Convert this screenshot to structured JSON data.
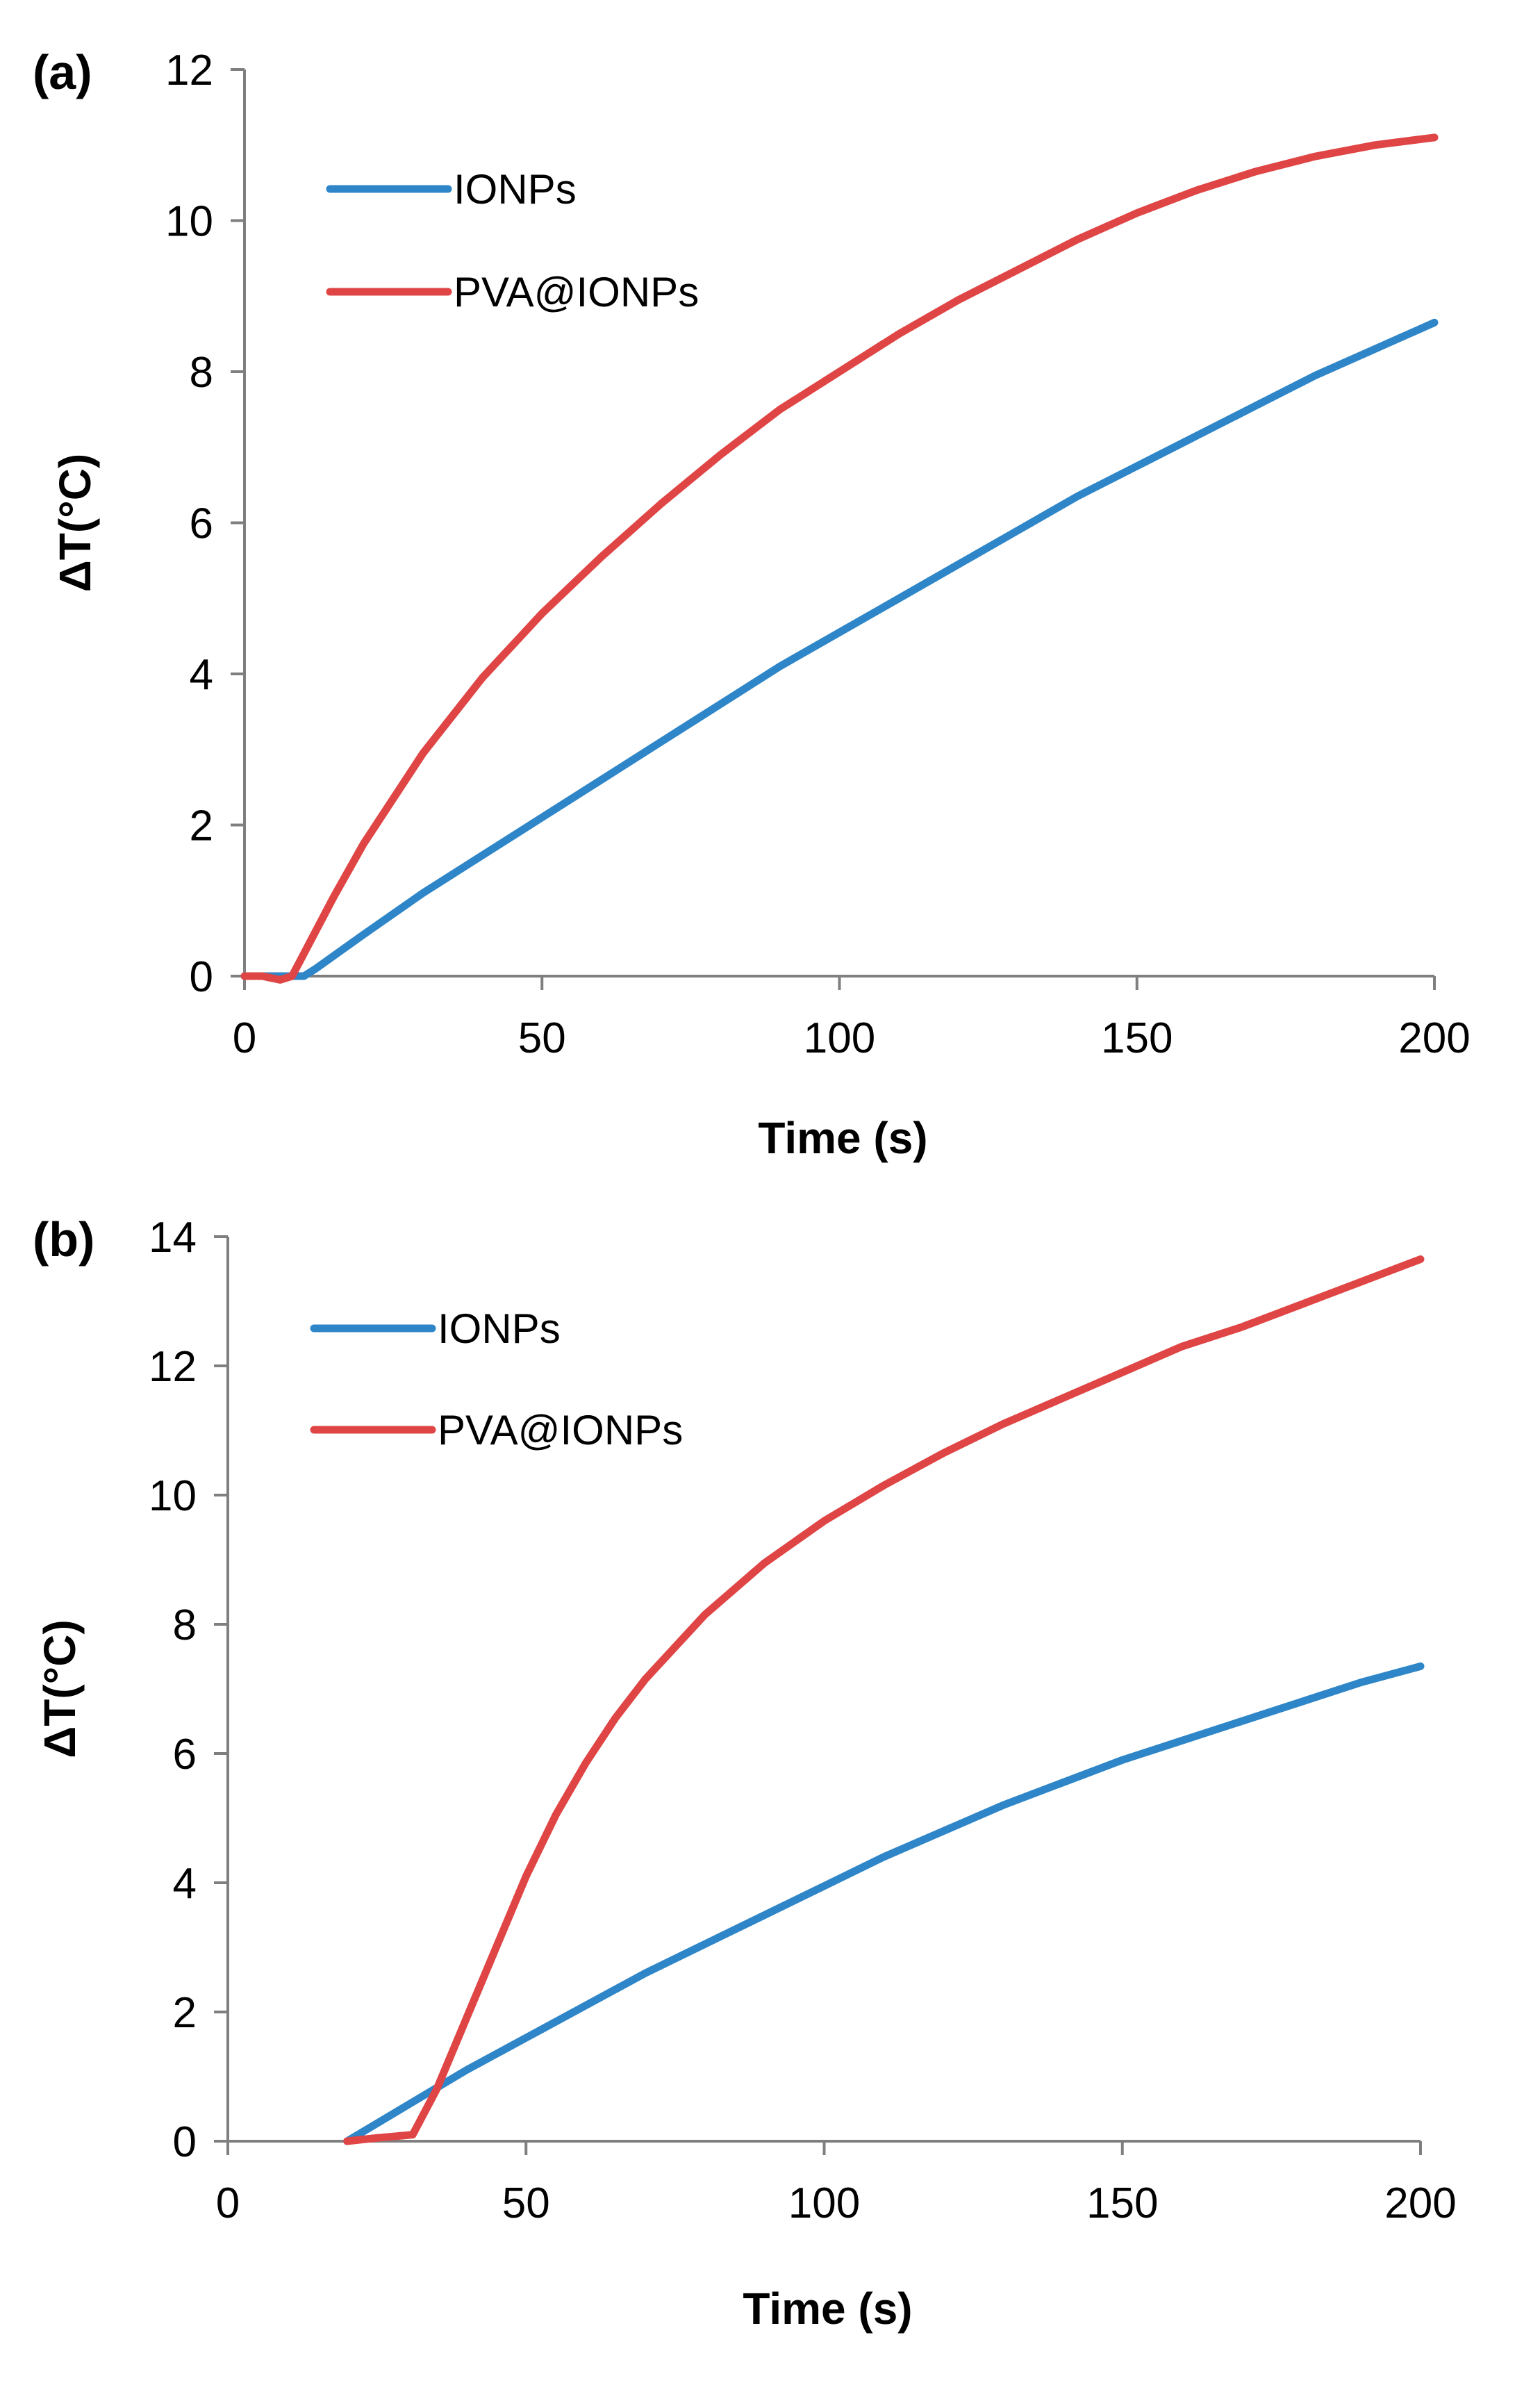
{
  "colors": {
    "IONPs": "#2E86C8",
    "PVA@IONPs": "#E04545",
    "axis": "#7F7F7F"
  },
  "chart_data": [
    {
      "type": "line",
      "panel_label": "(a)",
      "title": "",
      "xlabel": "Time (s)",
      "ylabel": "ΔT(°C)",
      "xlim": [
        0,
        200
      ],
      "ylim": [
        0,
        12
      ],
      "xticks": [
        0,
        50,
        100,
        150,
        200
      ],
      "yticks": [
        0,
        2,
        4,
        6,
        8,
        10,
        12
      ],
      "legend_position": "top-left",
      "series": [
        {
          "name": "IONPs",
          "x": [
            0,
            5,
            10,
            12,
            20,
            30,
            40,
            50,
            60,
            70,
            80,
            90,
            100,
            110,
            120,
            130,
            140,
            150,
            160,
            170,
            180,
            190,
            200
          ],
          "y": [
            0,
            0,
            0,
            0.1,
            0.55,
            1.1,
            1.6,
            2.1,
            2.6,
            3.1,
            3.6,
            4.1,
            4.55,
            5.0,
            5.45,
            5.9,
            6.35,
            6.75,
            7.15,
            7.55,
            7.95,
            8.3,
            8.65
          ]
        },
        {
          "name": "PVA@IONPs",
          "x": [
            0,
            3,
            6,
            8,
            10,
            15,
            20,
            30,
            40,
            50,
            60,
            70,
            80,
            90,
            100,
            110,
            120,
            130,
            140,
            150,
            160,
            170,
            180,
            190,
            200
          ],
          "y": [
            0,
            0,
            -0.05,
            0,
            0.3,
            1.05,
            1.75,
            2.95,
            3.95,
            4.8,
            5.55,
            6.25,
            6.9,
            7.5,
            8.0,
            8.5,
            8.95,
            9.35,
            9.75,
            10.1,
            10.4,
            10.65,
            10.85,
            11.0,
            11.1
          ]
        }
      ]
    },
    {
      "type": "line",
      "panel_label": "(b)",
      "title": "",
      "xlabel": "Time (s)",
      "ylabel": "ΔT(°C)",
      "xlim": [
        0,
        200
      ],
      "ylim": [
        0,
        14
      ],
      "xticks": [
        0,
        50,
        100,
        150,
        200
      ],
      "yticks": [
        0,
        2,
        4,
        6,
        8,
        10,
        12,
        14
      ],
      "legend_position": "top-left",
      "series": [
        {
          "name": "IONPs",
          "x": [
            20,
            30,
            40,
            50,
            60,
            70,
            80,
            90,
            100,
            110,
            120,
            130,
            140,
            150,
            160,
            170,
            180,
            190,
            200
          ],
          "y": [
            0,
            0.55,
            1.1,
            1.6,
            2.1,
            2.6,
            3.05,
            3.5,
            3.95,
            4.4,
            4.8,
            5.2,
            5.55,
            5.9,
            6.2,
            6.5,
            6.8,
            7.1,
            7.35
          ]
        },
        {
          "name": "PVA@IONPs",
          "x": [
            20,
            25,
            31,
            35,
            40,
            45,
            50,
            55,
            60,
            65,
            70,
            80,
            90,
            100,
            110,
            120,
            130,
            140,
            150,
            160,
            170,
            180,
            190,
            200
          ],
          "y": [
            0,
            0.05,
            0.1,
            0.8,
            1.9,
            3.0,
            4.1,
            5.05,
            5.85,
            6.55,
            7.15,
            8.15,
            8.95,
            9.6,
            10.15,
            10.65,
            11.1,
            11.5,
            11.9,
            12.3,
            12.6,
            12.95,
            13.3,
            13.65
          ]
        }
      ]
    }
  ]
}
